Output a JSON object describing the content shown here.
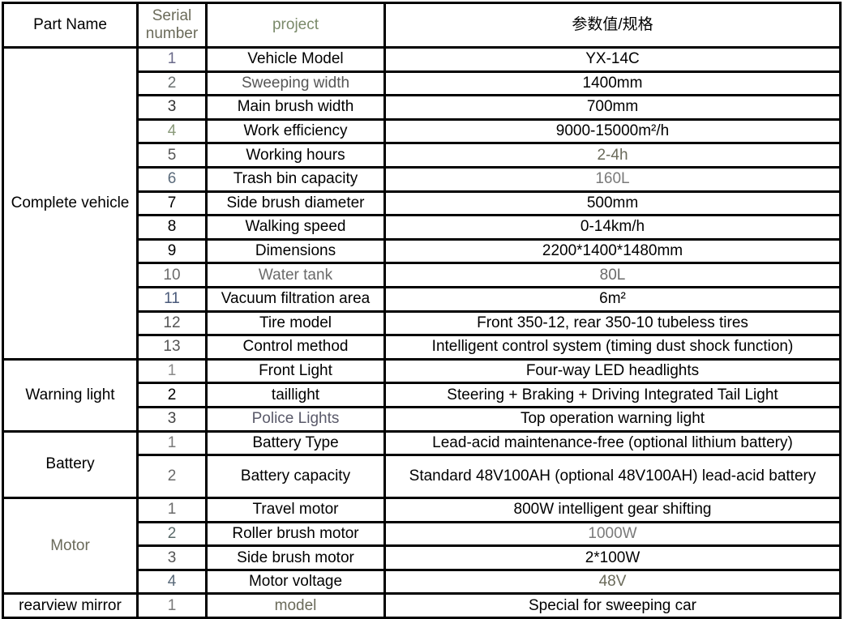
{
  "header": {
    "part_name": "Part Name",
    "serial": "Serial number",
    "project": "project",
    "value": "参数值/规格",
    "colors": {
      "part_name": "#000000",
      "serial": "#6b6b5a",
      "project": "#7a8a6a",
      "value": "#000000"
    }
  },
  "groups": [
    {
      "name": "Complete vehicle",
      "color": "#000000",
      "rows": [
        {
          "no": "1",
          "no_color": "#6a6a8a",
          "item": "Vehicle Model",
          "item_color": "#000000",
          "value": "YX-14C",
          "value_color": "#000000"
        },
        {
          "no": "2",
          "no_color": "#6a7070",
          "item": "Sweeping width",
          "item_color": "#555555",
          "value": "1400mm",
          "value_color": "#000000"
        },
        {
          "no": "3",
          "no_color": "#333333",
          "item": "Main brush width",
          "item_color": "#000000",
          "value": "700mm",
          "value_color": "#000000"
        },
        {
          "no": "4",
          "no_color": "#8a9a7a",
          "item": "Work efficiency",
          "item_color": "#000000",
          "value": "9000-15000m²/h",
          "value_color": "#000000"
        },
        {
          "no": "5",
          "no_color": "#555555",
          "item": "Working hours",
          "item_color": "#000000",
          "value": "2-4h",
          "value_color": "#6a6a5a"
        },
        {
          "no": "6",
          "no_color": "#5a6a7a",
          "item": "Trash bin capacity",
          "item_color": "#000000",
          "value": "160L",
          "value_color": "#7a7a7a"
        },
        {
          "no": "7",
          "no_color": "#000000",
          "item": "Side brush diameter",
          "item_color": "#000000",
          "value": "500mm",
          "value_color": "#000000"
        },
        {
          "no": "8",
          "no_color": "#000000",
          "item": "Walking speed",
          "item_color": "#000000",
          "value": "0-14km/h",
          "value_color": "#000000"
        },
        {
          "no": "9",
          "no_color": "#000000",
          "item": "Dimensions",
          "item_color": "#000000",
          "value": "2200*1400*1480mm",
          "value_color": "#000000"
        },
        {
          "no": "10",
          "no_color": "#6a6a6a",
          "item": "Water tank",
          "item_color": "#6a6a6a",
          "value": "80L",
          "value_color": "#6a6a6a"
        },
        {
          "no": "11",
          "no_color": "#4a5a7a",
          "item": "Vacuum filtration area",
          "item_color": "#000000",
          "value": "6m²",
          "value_color": "#000000"
        },
        {
          "no": "12",
          "no_color": "#555555",
          "item": "Tire model",
          "item_color": "#000000",
          "value": "Front 350-12, rear 350-10 tubeless tires",
          "value_color": "#000000"
        },
        {
          "no": "13",
          "no_color": "#555555",
          "item": "Control method",
          "item_color": "#000000",
          "value": "Intelligent control system (timing dust shock function)",
          "value_color": "#000000"
        }
      ]
    },
    {
      "name": "Warning light",
      "color": "#000000",
      "rows": [
        {
          "no": "1",
          "no_color": "#8a8a8a",
          "item": "Front Light",
          "item_color": "#000000",
          "value": "Four-way LED headlights",
          "value_color": "#000000"
        },
        {
          "no": "2",
          "no_color": "#000000",
          "item": "taillight",
          "item_color": "#000000",
          "value": "Steering + Braking + Driving Integrated Tail Light",
          "value_color": "#000000"
        },
        {
          "no": "3",
          "no_color": "#444444",
          "item": "Police Lights",
          "item_color": "#5a5a6a",
          "value": "Top operation warning light",
          "value_color": "#000000"
        }
      ]
    },
    {
      "name": "Battery",
      "color": "#000000",
      "rows": [
        {
          "no": "1",
          "no_color": "#7a7a7a",
          "item": "Battery Type",
          "item_color": "#000000",
          "value": "Lead-acid maintenance-free (optional lithium battery)",
          "value_color": "#000000"
        },
        {
          "no": "2",
          "no_color": "#6a6a6a",
          "item": "Battery capacity",
          "item_color": "#000000",
          "value": "Standard 48V100AH (optional 48V100AH) lead-acid battery",
          "value_color": "#000000",
          "tall": true
        }
      ]
    },
    {
      "name": "Motor",
      "color": "#6a6a5a",
      "rows": [
        {
          "no": "1",
          "no_color": "#6a6a6a",
          "item": "Travel motor",
          "item_color": "#000000",
          "value": "800W intelligent gear shifting",
          "value_color": "#000000"
        },
        {
          "no": "2",
          "no_color": "#5a6a6a",
          "item": "Roller brush motor",
          "item_color": "#000000",
          "value": "1000W",
          "value_color": "#7a7a7a"
        },
        {
          "no": "3",
          "no_color": "#555555",
          "item": "Side brush motor",
          "item_color": "#000000",
          "value": "2*100W",
          "value_color": "#000000"
        },
        {
          "no": "4",
          "no_color": "#5a6a7a",
          "item": "Motor voltage",
          "item_color": "#000000",
          "value": "48V",
          "value_color": "#6a6a5a"
        }
      ]
    },
    {
      "name": "rearview mirror",
      "color": "#000000",
      "rows": [
        {
          "no": "1",
          "no_color": "#7a7a7a",
          "item": "model",
          "item_color": "#6a6a5a",
          "value": "Special for sweeping car",
          "value_color": "#000000"
        }
      ]
    }
  ]
}
